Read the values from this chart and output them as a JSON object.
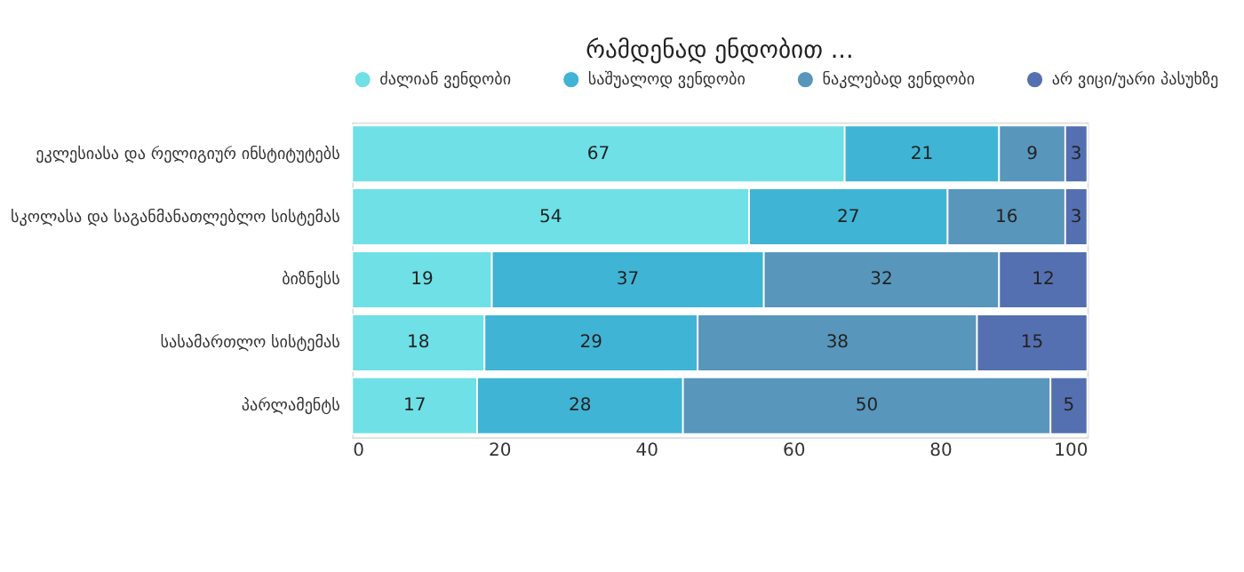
{
  "chart_data": {
    "type": "bar",
    "orientation": "horizontal",
    "stacked": true,
    "title": "რამდენად ენდობით ...",
    "categories": [
      "ეკლესიასა და რელიგიურ ინსტიტუტებს",
      "სკოლასა და საგანმანათლებლო სისტემას",
      "ბიზნესს",
      "სასამართლო სისტემას",
      "პარლამენტს"
    ],
    "series": [
      {
        "name": "ძალიან ვენდობი",
        "color": "#6ee0e6",
        "values": [
          67,
          54,
          19,
          18,
          17
        ]
      },
      {
        "name": "საშუალოდ ვენდობი",
        "color": "#40b4d4",
        "values": [
          21,
          27,
          37,
          29,
          28
        ]
      },
      {
        "name": "ნაკლებად ვენდობი",
        "color": "#5896bc",
        "values": [
          9,
          16,
          32,
          38,
          50
        ]
      },
      {
        "name": "არ ვიცი/უარი პასუხზე",
        "color": "#5570b0",
        "values": [
          3,
          3,
          12,
          15,
          5
        ]
      }
    ],
    "xlim": [
      0,
      100
    ],
    "xticks": [
      0,
      20,
      40,
      60,
      80,
      100
    ],
    "data_labels": true,
    "legend": "top",
    "grid": false
  }
}
